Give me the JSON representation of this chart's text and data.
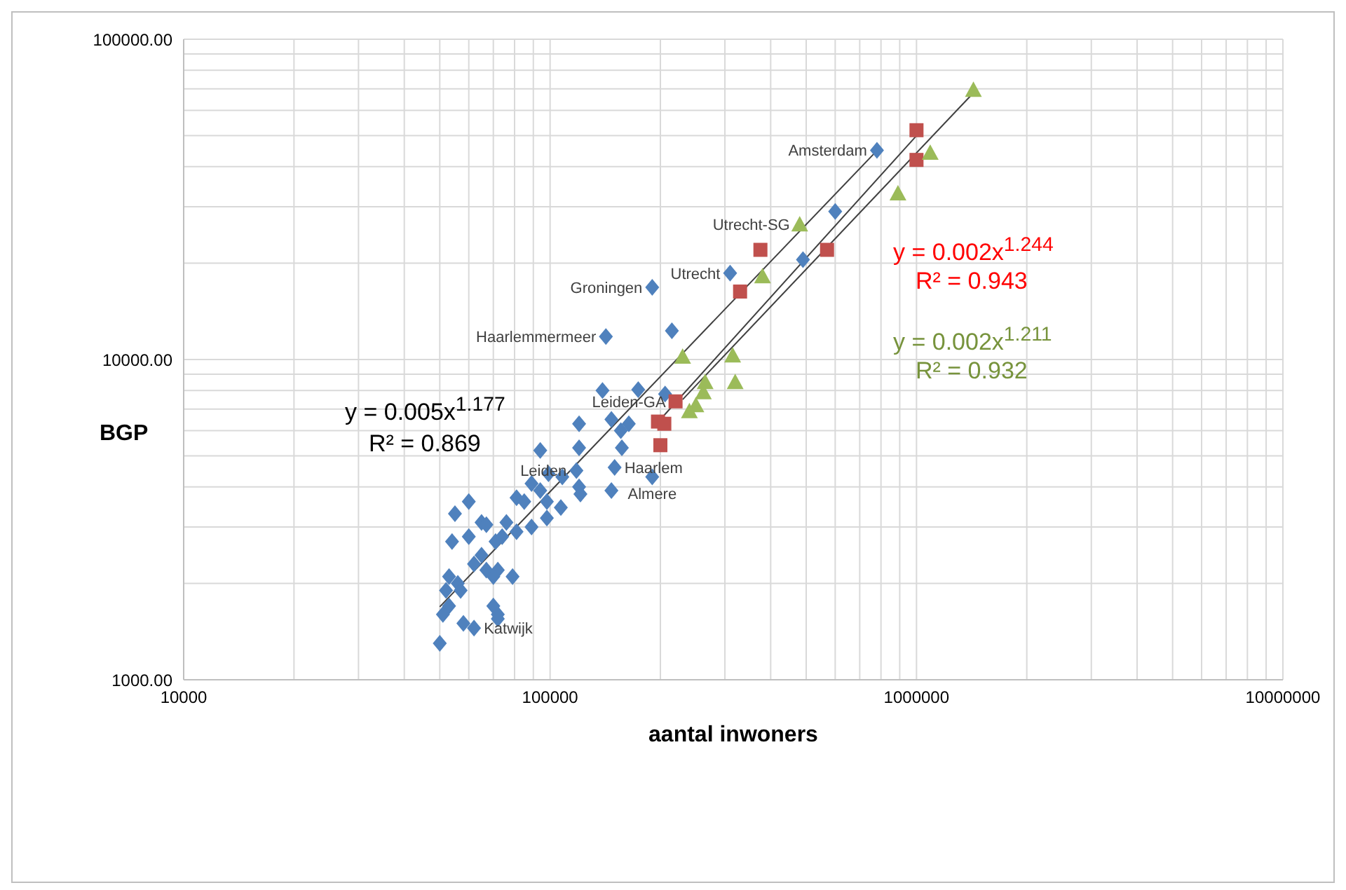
{
  "chart_data": {
    "type": "scatter",
    "xlabel": "aantal inwoners",
    "ylabel": "BGP",
    "log": "xy",
    "grid": true,
    "xlim": [
      10000,
      10000000
    ],
    "ylim": [
      1000,
      100000
    ],
    "xticks": [
      {
        "value": 10000,
        "label": "10000"
      },
      {
        "value": 20000,
        "label": null
      },
      {
        "value": 30000,
        "label": null
      },
      {
        "value": 40000,
        "label": null
      },
      {
        "value": 50000,
        "label": null
      },
      {
        "value": 60000,
        "label": null
      },
      {
        "value": 70000,
        "label": null
      },
      {
        "value": 80000,
        "label": null
      },
      {
        "value": 90000,
        "label": null
      },
      {
        "value": 100000,
        "label": "100000"
      },
      {
        "value": 200000,
        "label": null
      },
      {
        "value": 300000,
        "label": null
      },
      {
        "value": 400000,
        "label": null
      },
      {
        "value": 500000,
        "label": null
      },
      {
        "value": 600000,
        "label": null
      },
      {
        "value": 700000,
        "label": null
      },
      {
        "value": 800000,
        "label": null
      },
      {
        "value": 900000,
        "label": null
      },
      {
        "value": 1000000,
        "label": "1000000"
      },
      {
        "value": 2000000,
        "label": null
      },
      {
        "value": 3000000,
        "label": null
      },
      {
        "value": 4000000,
        "label": null
      },
      {
        "value": 5000000,
        "label": null
      },
      {
        "value": 6000000,
        "label": null
      },
      {
        "value": 7000000,
        "label": null
      },
      {
        "value": 8000000,
        "label": null
      },
      {
        "value": 9000000,
        "label": null
      },
      {
        "value": 10000000,
        "label": "10000000"
      }
    ],
    "yticks": [
      {
        "value": 1000,
        "label": "1000.00"
      },
      {
        "value": 2000,
        "label": null
      },
      {
        "value": 3000,
        "label": null
      },
      {
        "value": 4000,
        "label": null
      },
      {
        "value": 5000,
        "label": null
      },
      {
        "value": 6000,
        "label": null
      },
      {
        "value": 7000,
        "label": null
      },
      {
        "value": 8000,
        "label": null
      },
      {
        "value": 9000,
        "label": null
      },
      {
        "value": 10000,
        "label": "10000.00"
      },
      {
        "value": 20000,
        "label": null
      },
      {
        "value": 30000,
        "label": null
      },
      {
        "value": 40000,
        "label": null
      },
      {
        "value": 50000,
        "label": null
      },
      {
        "value": 60000,
        "label": null
      },
      {
        "value": 70000,
        "label": null
      },
      {
        "value": 80000,
        "label": null
      },
      {
        "value": 90000,
        "label": null
      },
      {
        "value": 100000,
        "label": "100000.00"
      }
    ],
    "series": [
      {
        "marker": "diamond",
        "color": "#4f81bd",
        "x": [
          780000,
          600000,
          490000,
          310000,
          190000,
          215000,
          142000,
          139000,
          174000,
          206000,
          120000,
          147000,
          164000,
          156000,
          94000,
          120000,
          157000,
          150000,
          190000,
          147000,
          89000,
          99000,
          108000,
          118000,
          94000,
          120000,
          121000,
          81000,
          85000,
          98000,
          107000,
          60000,
          55000,
          65000,
          67000,
          76000,
          89000,
          98000,
          81000,
          74000,
          71000,
          60000,
          54000,
          65000,
          62000,
          67000,
          72000,
          70000,
          79000,
          53000,
          56000,
          52000,
          57000,
          53000,
          51000,
          70000,
          72000,
          72000,
          58000,
          62000,
          50000
        ],
        "values": [
          45000,
          29000,
          20500,
          18600,
          16800,
          12300,
          11800,
          8000,
          8050,
          7800,
          6300,
          6500,
          6300,
          6000,
          5200,
          5300,
          5300,
          4600,
          4300,
          3900,
          4100,
          4400,
          4300,
          4500,
          3900,
          4000,
          3800,
          3700,
          3600,
          3600,
          3450,
          3600,
          3300,
          3100,
          3050,
          3100,
          3000,
          3200,
          2900,
          2800,
          2700,
          2800,
          2700,
          2450,
          2300,
          2200,
          2200,
          2100,
          2100,
          2100,
          2000,
          1900,
          1900,
          1700,
          1600,
          1700,
          1600,
          1550,
          1500,
          1450,
          1300
        ]
      },
      {
        "marker": "square",
        "color": "#c0504d",
        "x": [
          1000000,
          1000000,
          570000,
          375000,
          330000,
          220000,
          197000,
          205000,
          200000
        ],
        "values": [
          52000,
          42000,
          22000,
          22000,
          16300,
          7400,
          6400,
          6300,
          5400
        ]
      },
      {
        "marker": "triangle",
        "color": "#9bbb59",
        "x": [
          1430000,
          1090000,
          890000,
          480000,
          380000,
          230000,
          315000,
          320000,
          265000,
          262000,
          250000,
          240000
        ],
        "values": [
          69500,
          44200,
          33000,
          26400,
          18200,
          10200,
          10300,
          8500,
          8500,
          7900,
          7200,
          6900
        ]
      },
      {
        "type": "line",
        "marker": "none",
        "color": "#404040",
        "x": [
          50000,
          790000
        ],
        "values": [
          1690,
          45600
        ]
      },
      {
        "type": "line",
        "marker": "none",
        "color": "#404040",
        "x": [
          200000,
          1000000
        ],
        "values": [
          6500,
          50000
        ]
      },
      {
        "type": "line",
        "marker": "none",
        "color": "#404040",
        "x": [
          230000,
          1430000
        ],
        "values": [
          7500,
          68000
        ]
      }
    ],
    "annotations": [
      "y = 0.005x$^{1.177}$",
      "R² = 0.869",
      "y = 0.002x$^{1.244}$",
      "R² = 0.943",
      "y = 0.002x$^{1.211}$",
      "R² = 0.932",
      {
        "text": "Amsterdam",
        "x": 780000,
        "y": 45000
      },
      {
        "text": "Utrecht-SG",
        "x": 480000,
        "y": 26400
      },
      {
        "text": "Utrecht",
        "x": 310000,
        "y": 18600
      },
      {
        "text": "Groningen",
        "x": 190000,
        "y": 16800
      },
      {
        "text": "Haarlemmermeer",
        "x": 142000,
        "y": 11800
      },
      {
        "text": "Leiden-GA",
        "x": 220000,
        "y": 7400
      },
      {
        "text": "Leiden",
        "x": 118000,
        "y": 4500
      },
      {
        "text": "Haarlem",
        "x": 150000,
        "y": 4600
      },
      {
        "text": "Almere",
        "x": 190000,
        "y": 4300
      },
      {
        "text": "Katwijk",
        "x": 62000,
        "y": 1450
      }
    ]
  }
}
